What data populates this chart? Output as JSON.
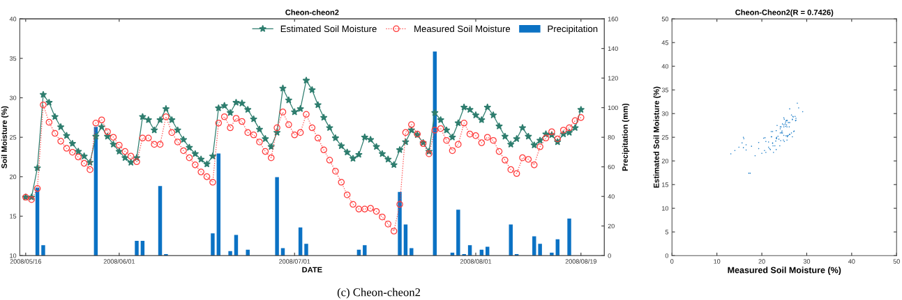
{
  "chart_data": [
    {
      "type": "line",
      "title": "Cheon-cheon2",
      "xlabel": "DATE",
      "ylabel": "Soil Moisture (%)",
      "y2label": "Precipitation (mm)",
      "x": [
        "2008-05-16",
        "2008-05-17",
        "2008-05-18",
        "2008-05-19",
        "2008-05-20",
        "2008-05-21",
        "2008-05-22",
        "2008-05-23",
        "2008-05-24",
        "2008-05-25",
        "2008-05-26",
        "2008-05-27",
        "2008-05-28",
        "2008-05-29",
        "2008-05-30",
        "2008-05-31",
        "2008-06-01",
        "2008-06-02",
        "2008-06-03",
        "2008-06-04",
        "2008-06-05",
        "2008-06-06",
        "2008-06-07",
        "2008-06-08",
        "2008-06-09",
        "2008-06-10",
        "2008-06-11",
        "2008-06-12",
        "2008-06-13",
        "2008-06-14",
        "2008-06-15",
        "2008-06-16",
        "2008-06-17",
        "2008-06-18",
        "2008-06-19",
        "2008-06-20",
        "2008-06-21",
        "2008-06-22",
        "2008-06-23",
        "2008-06-24",
        "2008-06-25",
        "2008-06-26",
        "2008-06-27",
        "2008-06-28",
        "2008-06-29",
        "2008-06-30",
        "2008-07-01",
        "2008-07-02",
        "2008-07-03",
        "2008-07-04",
        "2008-07-05",
        "2008-07-06",
        "2008-07-07",
        "2008-07-08",
        "2008-07-09",
        "2008-07-10",
        "2008-07-11",
        "2008-07-12",
        "2008-07-13",
        "2008-07-14",
        "2008-07-15",
        "2008-07-16",
        "2008-07-17",
        "2008-07-18",
        "2008-07-19",
        "2008-07-20",
        "2008-07-21",
        "2008-07-22",
        "2008-07-23",
        "2008-07-24",
        "2008-07-25",
        "2008-07-26",
        "2008-07-27",
        "2008-07-28",
        "2008-07-29",
        "2008-07-30",
        "2008-07-31",
        "2008-08-01",
        "2008-08-02",
        "2008-08-03",
        "2008-08-04",
        "2008-08-05",
        "2008-08-06",
        "2008-08-07",
        "2008-08-08",
        "2008-08-09",
        "2008-08-10",
        "2008-08-11",
        "2008-08-12",
        "2008-08-13",
        "2008-08-14",
        "2008-08-15",
        "2008-08-16",
        "2008-08-17",
        "2008-08-18",
        "2008-08-19"
      ],
      "series": [
        {
          "name": "Estimated Soil Moisture",
          "type": "line",
          "color": "#2e7d6e",
          "marker": "star",
          "line_style": "solid",
          "values": [
            17.4,
            17.4,
            21.1,
            30.4,
            29.4,
            27.6,
            26.3,
            25.2,
            24.2,
            23.2,
            22.6,
            21.8,
            25.1,
            26.3,
            25.1,
            24.1,
            23.2,
            22.4,
            21.8,
            22.4,
            27.6,
            27.2,
            25.9,
            27.2,
            28.6,
            27.2,
            25.9,
            24.7,
            23.7,
            22.9,
            22.2,
            21.6,
            22.6,
            28.7,
            29.0,
            28.1,
            29.4,
            29.3,
            28.5,
            27.3,
            26.0,
            24.8,
            23.8,
            25.6,
            31.2,
            29.7,
            28.2,
            28.6,
            32.2,
            31.0,
            29.1,
            27.5,
            26.2,
            24.9,
            23.9,
            23.1,
            22.3,
            22.8,
            25.0,
            24.7,
            23.8,
            22.9,
            22.2,
            21.5,
            23.4,
            24.4,
            25.9,
            25.3,
            24.3,
            23.2,
            28.1,
            27.2,
            25.9,
            25.0,
            26.8,
            28.8,
            28.5,
            27.8,
            27.2,
            28.8,
            27.8,
            26.4,
            25.1,
            24.1,
            24.8,
            26.2,
            25.1,
            24.0,
            24.6,
            25.4,
            25.3,
            24.4,
            25.4,
            25.6,
            26.2,
            28.5
          ]
        },
        {
          "name": "Measured Soil Moisture",
          "type": "line",
          "color": "#ff3b3b",
          "marker": "circle",
          "line_style": "dotted",
          "values": [
            17.4,
            17.1,
            18.5,
            29.1,
            26.9,
            25.5,
            24.5,
            23.6,
            23.1,
            22.5,
            21.7,
            20.9,
            26.8,
            27.2,
            25.7,
            25.0,
            24.0,
            23.2,
            22.6,
            21.9,
            24.9,
            24.9,
            24.1,
            24.1,
            27.6,
            25.6,
            24.4,
            23.3,
            22.4,
            21.5,
            20.6,
            20.0,
            19.3,
            26.8,
            27.6,
            26.2,
            27.4,
            27.0,
            25.6,
            25.3,
            24.4,
            23.2,
            22.4,
            26.2,
            28.2,
            26.6,
            25.3,
            25.6,
            27.9,
            26.2,
            24.9,
            23.4,
            22.1,
            20.7,
            19.3,
            17.7,
            16.5,
            15.9,
            15.9,
            16.0,
            15.6,
            14.9,
            14.0,
            13.1,
            16.5,
            25.6,
            26.6,
            25.4,
            24.2,
            22.9,
            25.9,
            26.1,
            24.6,
            23.3,
            24.1,
            26.8,
            25.4,
            25.2,
            24.3,
            25.0,
            24.6,
            23.2,
            22.1,
            20.9,
            20.4,
            22.4,
            22.2,
            21.5,
            23.8,
            24.9,
            25.7,
            24.8,
            25.9,
            26.2,
            27.1,
            27.5
          ]
        },
        {
          "name": "Precipitation",
          "type": "bar",
          "axis": "y2",
          "color": "#0b72c4",
          "x": [
            "2008-05-18",
            "2008-05-19",
            "2008-05-28",
            "2008-06-04",
            "2008-06-05",
            "2008-06-08",
            "2008-06-09",
            "2008-06-17",
            "2008-06-18",
            "2008-06-20",
            "2008-06-21",
            "2008-06-23",
            "2008-06-28",
            "2008-06-29",
            "2008-07-02",
            "2008-07-03",
            "2008-07-12",
            "2008-07-13",
            "2008-07-19",
            "2008-07-20",
            "2008-07-21",
            "2008-07-25",
            "2008-07-28",
            "2008-07-29",
            "2008-07-30",
            "2008-07-31",
            "2008-08-02",
            "2008-08-03",
            "2008-08-07",
            "2008-08-08",
            "2008-08-11",
            "2008-08-12",
            "2008-08-14",
            "2008-08-15",
            "2008-08-17"
          ],
          "values": [
            46,
            7,
            87,
            10,
            10,
            47,
            1,
            15,
            69,
            3,
            14,
            4,
            53,
            5,
            19,
            8,
            4,
            7,
            43,
            21,
            5,
            138,
            2,
            31,
            1,
            7,
            4,
            6,
            21,
            1,
            13,
            8,
            2,
            11,
            25
          ]
        }
      ],
      "xlim": [
        "2008-05-15",
        "2008-08-23"
      ],
      "xticks": [
        {
          "value": "2008-05-16",
          "label": "2008/05/16"
        },
        {
          "value": "2008-06-01",
          "label": "2008/06/01"
        },
        {
          "value": "2008-07-01",
          "label": "2008/07/01"
        },
        {
          "value": "2008-08-01",
          "label": "2008/08/01"
        },
        {
          "value": "2008-08-19",
          "label": "2008/08/19"
        }
      ],
      "ylim": [
        10,
        40
      ],
      "yticks": [
        10,
        15,
        20,
        25,
        30,
        35,
        40
      ],
      "y2lim": [
        0,
        160
      ],
      "y2ticks": [
        0,
        20,
        40,
        60,
        80,
        100,
        120,
        140,
        160
      ],
      "legend": "top right",
      "grid": false,
      "annotations": [
        "(c) Cheon-cheon2"
      ]
    },
    {
      "type": "scatter",
      "title": "Cheon-Cheon2(R = 0.7426)",
      "xlabel": "Measured Soil Moisture (%)",
      "ylabel": "Estimated Soil Moisture (%)",
      "color": "#1f7ec8",
      "grid": false,
      "x": [
        17.4,
        17.1,
        18.5,
        29.1,
        26.9,
        25.5,
        24.5,
        23.6,
        23.1,
        22.5,
        21.7,
        20.9,
        26.8,
        27.2,
        25.7,
        25.0,
        24.0,
        23.2,
        22.6,
        21.9,
        24.9,
        24.9,
        24.1,
        24.1,
        27.6,
        25.6,
        24.4,
        23.3,
        22.4,
        21.5,
        20.6,
        20.0,
        19.3,
        26.8,
        27.6,
        26.2,
        27.4,
        27.0,
        25.6,
        25.3,
        24.4,
        23.2,
        22.4,
        26.2,
        28.2,
        26.6,
        25.3,
        25.6,
        27.9,
        26.2,
        24.9,
        23.4,
        22.1,
        20.7,
        19.3,
        17.7,
        16.5,
        15.9,
        15.9,
        16.0,
        15.6,
        14.9,
        14.0,
        13.1,
        16.5,
        25.6,
        26.6,
        25.4,
        24.2,
        22.9,
        25.9,
        26.1,
        24.6,
        23.3,
        24.1,
        26.8,
        25.4,
        25.2,
        24.3,
        25.0,
        24.6,
        23.2,
        22.1,
        20.9,
        20.4,
        22.4,
        22.2,
        21.5,
        23.8,
        24.9,
        25.7,
        24.8,
        25.9,
        26.2,
        27.1,
        27.5
      ],
      "values": [
        17.4,
        17.4,
        21.1,
        30.4,
        29.4,
        27.6,
        26.3,
        25.2,
        24.2,
        23.2,
        22.6,
        21.8,
        25.1,
        26.3,
        25.1,
        24.1,
        23.2,
        22.4,
        21.8,
        22.4,
        27.6,
        27.2,
        25.9,
        27.2,
        28.6,
        27.2,
        25.9,
        24.7,
        23.7,
        22.9,
        22.2,
        21.6,
        22.6,
        28.7,
        29.0,
        28.1,
        29.4,
        29.3,
        28.5,
        27.3,
        26.0,
        24.8,
        23.8,
        25.6,
        31.2,
        29.7,
        28.2,
        28.6,
        32.2,
        31.0,
        29.1,
        27.5,
        26.2,
        24.9,
        23.9,
        23.1,
        22.3,
        22.8,
        25.0,
        24.7,
        23.8,
        22.9,
        22.2,
        21.5,
        23.4,
        24.4,
        25.9,
        25.3,
        24.3,
        23.2,
        28.1,
        27.2,
        25.9,
        25.0,
        26.8,
        28.8,
        28.5,
        27.8,
        27.2,
        28.8,
        27.8,
        26.4,
        25.1,
        24.1,
        24.8,
        26.2,
        25.1,
        24.0,
        24.6,
        25.4,
        25.3,
        24.4,
        25.4,
        25.6,
        26.2,
        28.5
      ],
      "xlim": [
        0,
        50
      ],
      "xticks": [
        0,
        10,
        20,
        30,
        40,
        50
      ],
      "ylim": [
        0,
        50
      ],
      "yticks": [
        0,
        5,
        10,
        15,
        20,
        25,
        30,
        35,
        40,
        45,
        50
      ]
    }
  ]
}
